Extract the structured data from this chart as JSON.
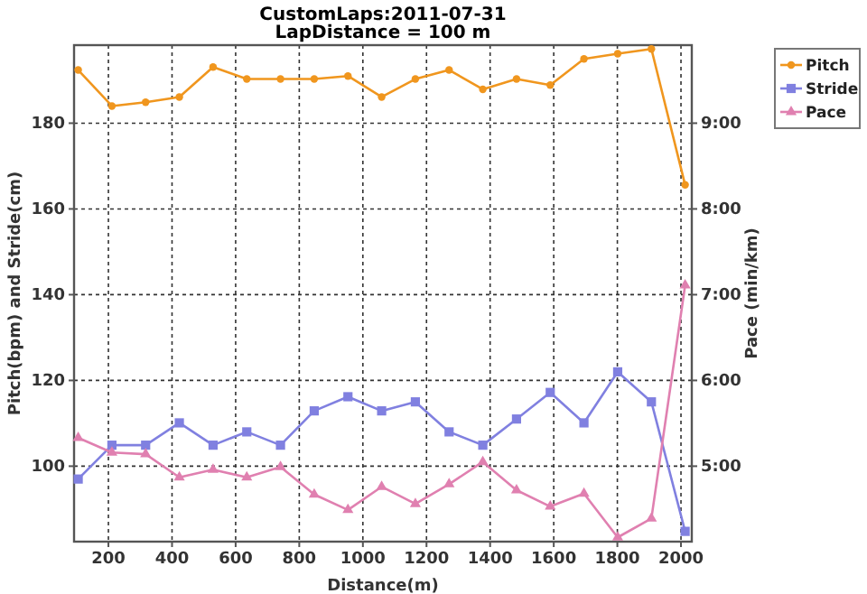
{
  "chart_data": {
    "type": "line",
    "title": "CustomLaps:2011-07-31",
    "subtitle": "LapDistance = 100 m",
    "xlabel": "Distance(m)",
    "ylabel": "Pitch(bpm) and Stride(cm)",
    "y2label": "Pace (min/km)",
    "x": [
      105,
      211,
      317,
      423,
      529,
      635,
      741,
      847,
      953,
      1059,
      1165,
      1271,
      1377,
      1483,
      1589,
      1695,
      1801,
      1907,
      2013
    ],
    "xlim": [
      92,
      2034
    ],
    "xticks": [
      200,
      400,
      600,
      800,
      1000,
      1200,
      1400,
      1600,
      1800,
      2000
    ],
    "ylim": [
      82.4,
      198.2
    ],
    "yticks": [
      100,
      120,
      140,
      160,
      180
    ],
    "y2lim": [
      4.12,
      9.91
    ],
    "y2ticks": [
      {
        "value": 5,
        "label": "5:00"
      },
      {
        "value": 6,
        "label": "6:00"
      },
      {
        "value": 7,
        "label": "7:00"
      },
      {
        "value": 8,
        "label": "8:00"
      },
      {
        "value": 9,
        "label": "9:00"
      }
    ],
    "grid": true,
    "legend": "top right",
    "line_style": "solid",
    "series": [
      {
        "name": "Pitch",
        "color": "#f0961e",
        "marker": "circle",
        "values": [
          192.4,
          184.0,
          184.9,
          186.1,
          193.1,
          190.3,
          190.3,
          190.3,
          191.0,
          186.1,
          190.3,
          192.4,
          187.9,
          190.3,
          188.9,
          195.0,
          196.2,
          197.3,
          165.6
        ]
      },
      {
        "name": "Stride",
        "color": "#8080e0",
        "marker": "square",
        "values": [
          97.0,
          104.9,
          104.9,
          110.1,
          104.9,
          108.0,
          104.9,
          112.9,
          116.2,
          112.9,
          115.0,
          108.0,
          104.9,
          111.0,
          117.2,
          110.1,
          122.0,
          115.0,
          84.8
        ]
      },
      {
        "name": "Pace",
        "color": "#e080b0",
        "marker": "triangle",
        "axis": "y2",
        "values": [
          5.33,
          5.16,
          5.14,
          4.87,
          4.96,
          4.87,
          4.99,
          4.67,
          4.49,
          4.76,
          4.56,
          4.79,
          5.05,
          4.72,
          4.53,
          4.68,
          4.17,
          4.39,
          7.11
        ]
      }
    ]
  }
}
